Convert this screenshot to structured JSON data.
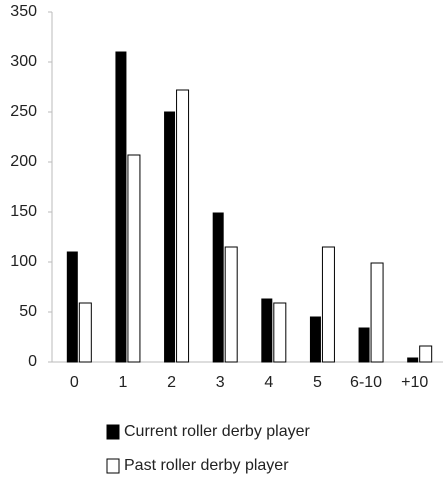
{
  "chart_data": {
    "type": "bar",
    "categories": [
      "0",
      "1",
      "2",
      "3",
      "4",
      "5",
      "6-10",
      "+10"
    ],
    "series": [
      {
        "name": "Current roller derby player",
        "color": "#000000",
        "values": [
          110,
          310,
          250,
          149,
          63,
          45,
          34,
          4
        ]
      },
      {
        "name": "Past roller derby player",
        "color": "#ffffff",
        "values": [
          59,
          207,
          272,
          115,
          59,
          115,
          99,
          16
        ]
      }
    ],
    "ylim": [
      0,
      350
    ],
    "yticks": [
      0,
      50,
      100,
      150,
      200,
      250,
      300,
      350
    ],
    "grid": false,
    "legend": "bottom"
  }
}
